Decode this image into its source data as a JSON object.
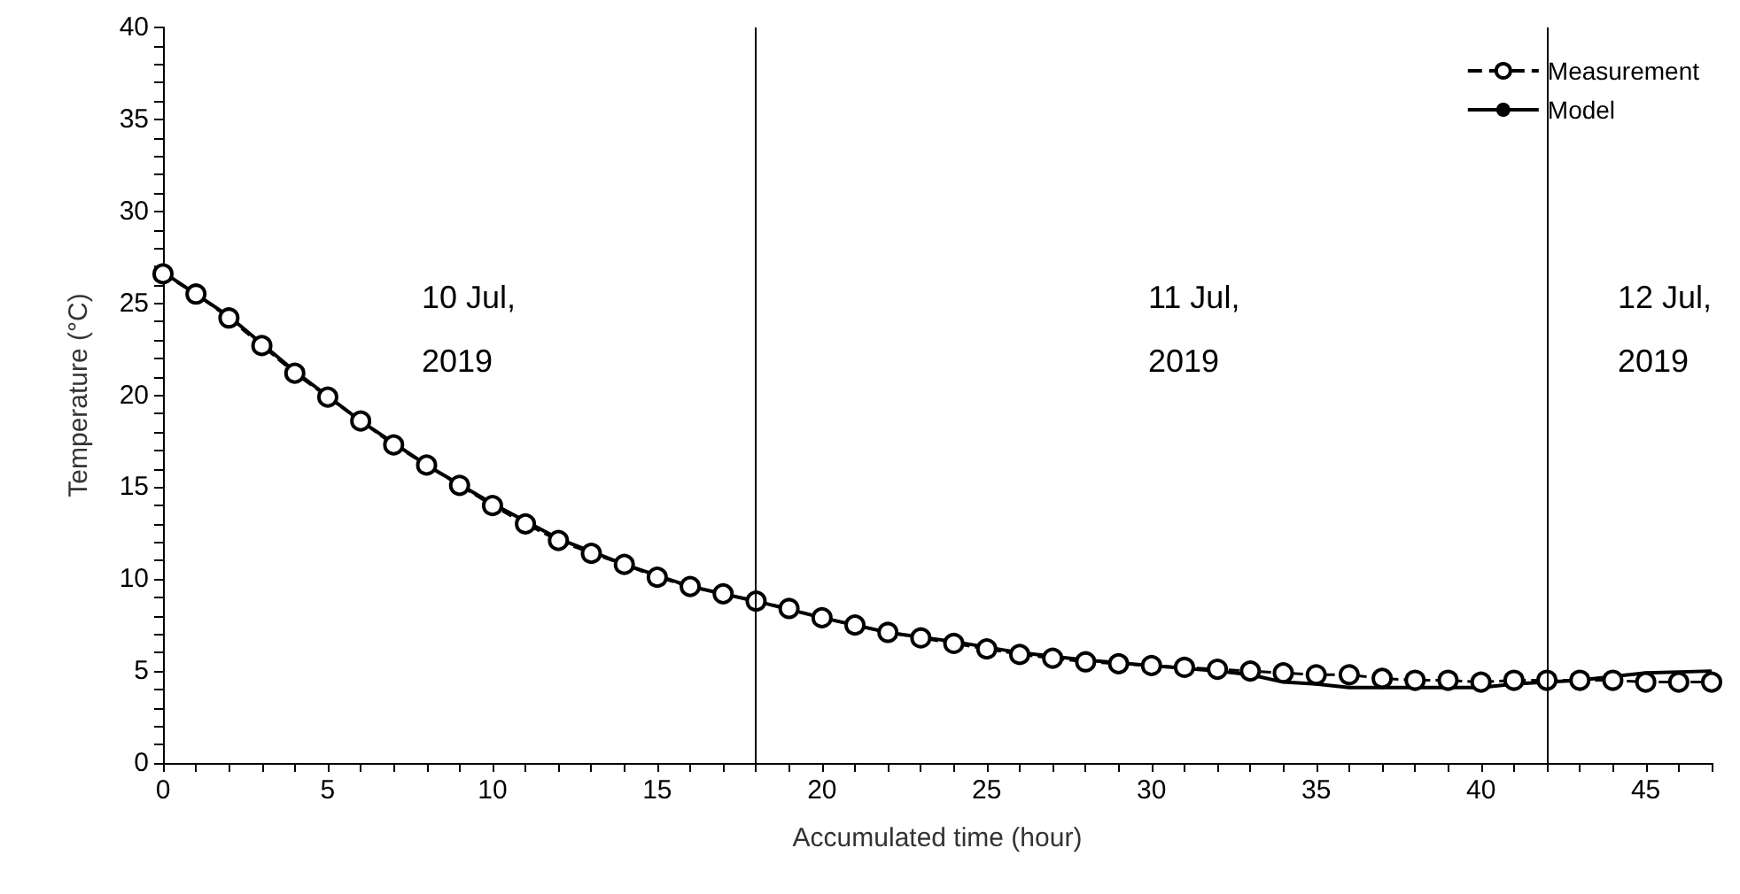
{
  "chart_data": {
    "type": "line",
    "xlabel": "Accumulated time (hour)",
    "ylabel": "Temperature (°C)",
    "x": [
      0,
      1,
      2,
      3,
      4,
      5,
      6,
      7,
      8,
      9,
      10,
      11,
      12,
      13,
      14,
      15,
      16,
      17,
      18,
      19,
      20,
      21,
      22,
      23,
      24,
      25,
      26,
      27,
      28,
      29,
      30,
      31,
      32,
      33,
      34,
      35,
      36,
      37,
      38,
      39,
      40,
      41,
      42,
      43,
      44,
      45,
      46,
      47
    ],
    "series": [
      {
        "name": "Measurement",
        "color": "#000000",
        "marker": "circle",
        "line_style": "dashed",
        "values": [
          26.6,
          25.5,
          24.2,
          22.7,
          21.2,
          19.9,
          18.6,
          17.3,
          16.2,
          15.1,
          14.0,
          13.0,
          12.1,
          11.4,
          10.8,
          10.1,
          9.6,
          9.2,
          8.8,
          8.4,
          7.9,
          7.5,
          7.1,
          6.8,
          6.5,
          6.2,
          5.9,
          5.7,
          5.5,
          5.4,
          5.3,
          5.2,
          5.1,
          5.0,
          4.9,
          4.8,
          4.8,
          4.6,
          4.5,
          4.5,
          4.4,
          4.5,
          4.5,
          4.5,
          4.5,
          4.4,
          4.4,
          4.4
        ]
      },
      {
        "name": "Model",
        "color": "#000000",
        "marker": "none",
        "line_style": "solid",
        "x": [
          0,
          2,
          4,
          6,
          8,
          10,
          12,
          14,
          16,
          18,
          20,
          22,
          24,
          26,
          28,
          30,
          32,
          33,
          34,
          35,
          36,
          38,
          40,
          41,
          42,
          43,
          44,
          45,
          47
        ],
        "values": [
          26.7,
          24.3,
          21.3,
          18.6,
          16.2,
          14.1,
          12.2,
          10.8,
          9.6,
          8.8,
          7.9,
          7.1,
          6.6,
          6.0,
          5.6,
          5.3,
          5.0,
          4.8,
          4.4,
          4.3,
          4.1,
          4.1,
          4.1,
          4.3,
          4.4,
          4.5,
          4.7,
          4.9,
          5.0
        ]
      }
    ],
    "xlim": [
      0,
      47
    ],
    "xticks": [
      0,
      {
        "value": 1,
        "label": null
      },
      {
        "value": 2,
        "label": null
      },
      {
        "value": 3,
        "label": null
      },
      {
        "value": 4,
        "label": null
      },
      5,
      {
        "value": 6,
        "label": null
      },
      {
        "value": 7,
        "label": null
      },
      {
        "value": 8,
        "label": null
      },
      {
        "value": 9,
        "label": null
      },
      10,
      {
        "value": 11,
        "label": null
      },
      {
        "value": 12,
        "label": null
      },
      {
        "value": 13,
        "label": null
      },
      {
        "value": 14,
        "label": null
      },
      15,
      {
        "value": 16,
        "label": null
      },
      {
        "value": 17,
        "label": null
      },
      {
        "value": 18,
        "label": null
      },
      {
        "value": 19,
        "label": null
      },
      20,
      {
        "value": 21,
        "label": null
      },
      {
        "value": 22,
        "label": null
      },
      {
        "value": 23,
        "label": null
      },
      {
        "value": 24,
        "label": null
      },
      25,
      {
        "value": 26,
        "label": null
      },
      {
        "value": 27,
        "label": null
      },
      {
        "value": 28,
        "label": null
      },
      {
        "value": 29,
        "label": null
      },
      30,
      {
        "value": 31,
        "label": null
      },
      {
        "value": 32,
        "label": null
      },
      {
        "value": 33,
        "label": null
      },
      {
        "value": 34,
        "label": null
      },
      35,
      {
        "value": 36,
        "label": null
      },
      {
        "value": 37,
        "label": null
      },
      {
        "value": 38,
        "label": null
      },
      {
        "value": 39,
        "label": null
      },
      40,
      {
        "value": 41,
        "label": null
      },
      {
        "value": 42,
        "label": null
      },
      {
        "value": 43,
        "label": null
      },
      {
        "value": 44,
        "label": null
      },
      45,
      {
        "value": 46,
        "label": null
      },
      {
        "value": 47,
        "label": null
      }
    ],
    "ylim": [
      0,
      40
    ],
    "yticks": [
      0,
      {
        "value": 1,
        "label": null
      },
      {
        "value": 2,
        "label": null
      },
      {
        "value": 3,
        "label": null
      },
      {
        "value": 4,
        "label": null
      },
      5,
      {
        "value": 6,
        "label": null
      },
      {
        "value": 7,
        "label": null
      },
      {
        "value": 8,
        "label": null
      },
      {
        "value": 9,
        "label": null
      },
      10,
      {
        "value": 11,
        "label": null
      },
      {
        "value": 12,
        "label": null
      },
      {
        "value": 13,
        "label": null
      },
      {
        "value": 14,
        "label": null
      },
      15,
      {
        "value": 16,
        "label": null
      },
      {
        "value": 17,
        "label": null
      },
      {
        "value": 18,
        "label": null
      },
      {
        "value": 19,
        "label": null
      },
      20,
      {
        "value": 21,
        "label": null
      },
      {
        "value": 22,
        "label": null
      },
      {
        "value": 23,
        "label": null
      },
      {
        "value": 24,
        "label": null
      },
      25,
      {
        "value": 26,
        "label": null
      },
      {
        "value": 27,
        "label": null
      },
      {
        "value": 28,
        "label": null
      },
      {
        "value": 29,
        "label": null
      },
      30,
      {
        "value": 31,
        "label": null
      },
      {
        "value": 32,
        "label": null
      },
      {
        "value": 33,
        "label": null
      },
      {
        "value": 34,
        "label": null
      },
      35,
      {
        "value": 36,
        "label": null
      },
      {
        "value": 37,
        "label": null
      },
      {
        "value": 38,
        "label": null
      },
      {
        "value": 39,
        "label": null
      },
      40
    ],
    "ref_lines": [
      {
        "axis": "x",
        "value": 18,
        "color": "#000000"
      },
      {
        "axis": "x",
        "value": 42,
        "color": "#000000"
      }
    ],
    "annotations": [
      "10 Jul,\n2019",
      "11 Jul,\n2019",
      "12 Jul,\n2019"
    ],
    "grid": false,
    "legend": "top right"
  }
}
